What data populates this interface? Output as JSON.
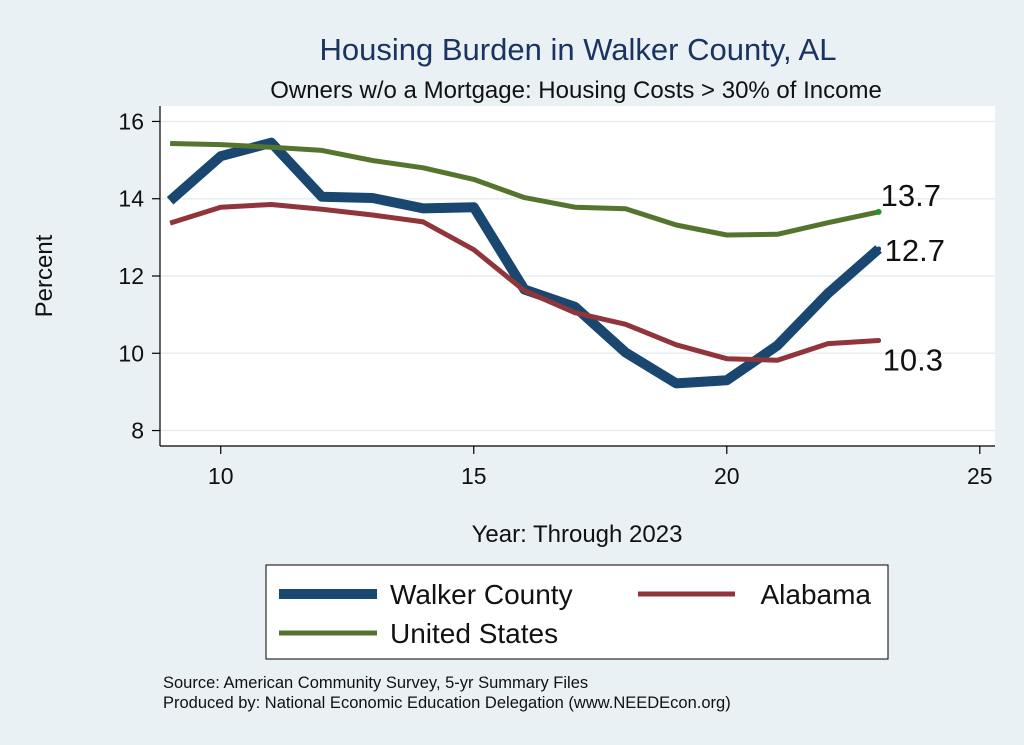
{
  "chart_data": {
    "type": "line",
    "title": "Housing Burden in Walker County, AL",
    "subtitle": "Owners w/o a Mortgage: Housing Costs > 30% of Income",
    "xlabel": "Year: Through 2023",
    "ylabel": "Percent",
    "xlim": [
      8.8,
      25.3
    ],
    "ylim": [
      7.6,
      16.4
    ],
    "xticks": [
      10,
      15,
      20,
      25
    ],
    "yticks": [
      8,
      10,
      12,
      14,
      16
    ],
    "grid": "horizontal",
    "legend_position": "bottom",
    "x": [
      9,
      10,
      11,
      12,
      13,
      14,
      15,
      16,
      17,
      18,
      19,
      20,
      21,
      22,
      23
    ],
    "series": [
      {
        "name": "Walker County",
        "color": "#1a476f",
        "end_label": "12.7",
        "values": [
          13.95,
          15.1,
          15.45,
          14.05,
          14.02,
          13.75,
          13.78,
          11.65,
          11.2,
          10.02,
          9.22,
          9.3,
          10.2,
          11.55,
          12.7
        ]
      },
      {
        "name": "Alabama",
        "color": "#90353b",
        "end_label": "10.3",
        "values": [
          13.37,
          13.78,
          13.85,
          13.73,
          13.58,
          13.4,
          12.68,
          11.62,
          11.05,
          10.75,
          10.22,
          9.86,
          9.82,
          10.25,
          10.33
        ]
      },
      {
        "name": "United States",
        "color": "#55752f",
        "end_label": "13.7",
        "values": [
          15.43,
          15.4,
          15.33,
          15.25,
          14.99,
          14.8,
          14.5,
          14.03,
          13.78,
          13.74,
          13.32,
          13.06,
          13.08,
          13.38,
          13.66
        ]
      }
    ]
  },
  "notes": {
    "source": "Source: American Community Survey, 5-yr Summary Files",
    "produced_by": "Produced by: National Economic Education Delegation (www.NEEDEcon.org)"
  }
}
